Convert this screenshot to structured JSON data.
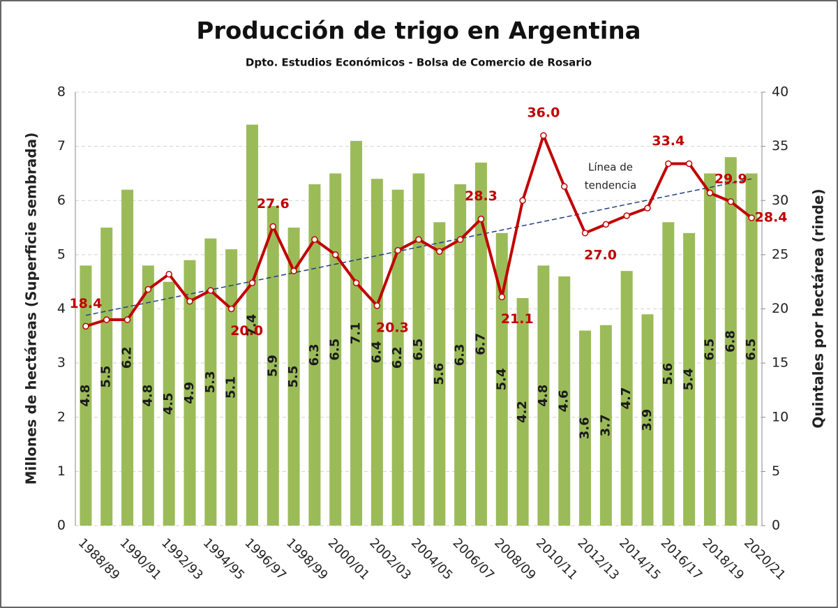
{
  "chart_data": {
    "type": "bar-line",
    "title": "Producción de trigo en Argentina",
    "subtitle": "Dpto. Estudios Económicos - Bolsa de Comercio de Rosario",
    "ylabel": "Millones de hectáreas (Superficie sembrada)",
    "y2label": "Quintales por hectárea (rinde)",
    "categories": [
      "1988/89",
      null,
      "1990/91",
      null,
      "1992/93",
      null,
      "1994/95",
      null,
      "1996/97",
      null,
      "1998/99",
      null,
      "2000/01",
      null,
      "2002/03",
      null,
      "2004/05",
      null,
      "2006/07",
      null,
      "2008/09",
      null,
      "2010/11",
      null,
      "2012/13",
      null,
      "2014/15",
      null,
      "2016/17",
      null,
      "2018/19",
      null,
      "2020/21"
    ],
    "series": [
      {
        "type": "bar",
        "color": "#9bbb59",
        "values": [
          4.8,
          5.5,
          6.2,
          4.8,
          4.5,
          4.9,
          5.3,
          5.1,
          7.4,
          5.9,
          5.5,
          6.3,
          6.5,
          7.1,
          6.4,
          6.2,
          6.5,
          5.6,
          6.3,
          6.7,
          5.4,
          4.2,
          4.8,
          4.6,
          3.6,
          3.7,
          4.7,
          3.9,
          5.6,
          5.4,
          6.5,
          6.8,
          6.5
        ]
      },
      {
        "type": "line",
        "axis": "y2",
        "color": "#c00000",
        "values": [
          18.4,
          19.0,
          19.0,
          21.8,
          23.2,
          20.7,
          21.7,
          20.0,
          22.4,
          27.6,
          23.5,
          26.4,
          25.0,
          22.4,
          20.3,
          25.4,
          26.4,
          25.3,
          26.4,
          28.3,
          21.1,
          30.0,
          36.0,
          31.3,
          27.0,
          27.8,
          28.6,
          29.3,
          33.4,
          33.4,
          30.7,
          29.9,
          28.4
        ],
        "value_labels": [
          "18.4",
          null,
          null,
          null,
          null,
          null,
          null,
          "20.0",
          null,
          "27.6",
          null,
          null,
          null,
          null,
          "20.3",
          null,
          null,
          null,
          null,
          "28.3",
          "21.1",
          null,
          "36.0",
          null,
          "27.0",
          null,
          null,
          null,
          "33.4",
          null,
          null,
          "29.9",
          "28.4"
        ]
      }
    ],
    "trend": {
      "label": [
        "Línea de",
        "tendencia"
      ],
      "color": "#1f3f7f",
      "values": [
        19.4,
        32.0
      ]
    },
    "ylim": [
      0,
      8
    ],
    "yticks": [
      0,
      1,
      2,
      3,
      4,
      5,
      6,
      7,
      8
    ],
    "y2lim": [
      0,
      40
    ],
    "y2ticks": [
      0,
      5,
      10,
      15,
      20,
      25,
      30,
      35,
      40
    ],
    "grid": true
  }
}
